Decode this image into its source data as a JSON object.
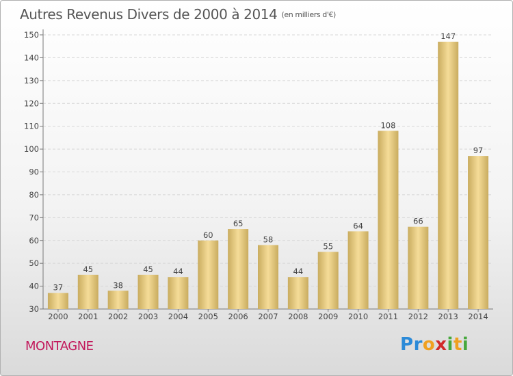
{
  "chart_data": {
    "type": "bar",
    "title": "Autres Revenus Divers de 2000 à 2014",
    "unit": "(en milliers d'€)",
    "categories": [
      "2000",
      "2001",
      "2002",
      "2003",
      "2004",
      "2005",
      "2006",
      "2007",
      "2008",
      "2009",
      "2010",
      "2011",
      "2012",
      "2013",
      "2014"
    ],
    "values": [
      37,
      45,
      38,
      45,
      44,
      60,
      65,
      58,
      44,
      55,
      64,
      108,
      66,
      147,
      97
    ],
    "ylim": [
      30,
      150
    ],
    "yticks": [
      30,
      40,
      50,
      60,
      70,
      80,
      90,
      100,
      110,
      120,
      130,
      140,
      150
    ],
    "grid": true,
    "bar_color": "#e8cd85"
  },
  "footer": {
    "commune": "MONTAGNE",
    "logo_letters": [
      "P",
      "r",
      "o",
      "x",
      "i",
      "t",
      "i"
    ],
    "logo_colors": [
      "#2b8ad8",
      "#2b8ad8",
      "#f0a020",
      "#d12a2a",
      "#46a83c",
      "#f0a020",
      "#46a83c"
    ]
  }
}
